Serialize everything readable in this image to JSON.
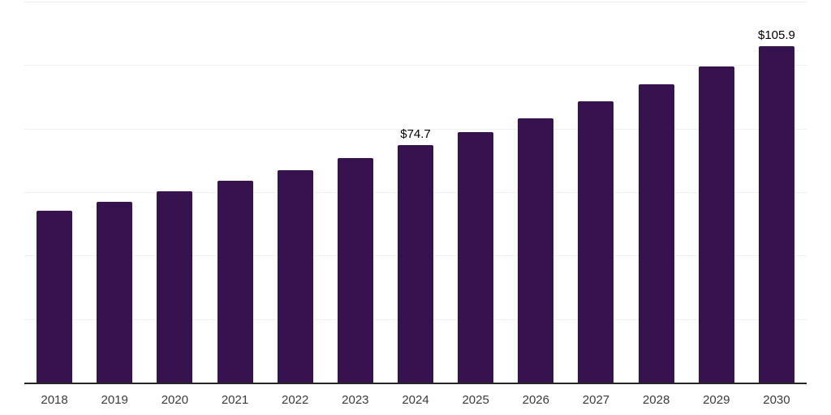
{
  "chart_data": {
    "type": "bar",
    "title": "",
    "xlabel": "",
    "ylabel": "",
    "categories": [
      "2018",
      "2019",
      "2020",
      "2021",
      "2022",
      "2023",
      "2024",
      "2025",
      "2026",
      "2027",
      "2028",
      "2029",
      "2030"
    ],
    "values": [
      54.1,
      56.9,
      60.2,
      63.5,
      67.0,
      70.6,
      74.7,
      78.8,
      83.3,
      88.6,
      94.0,
      99.6,
      105.9
    ],
    "data_labels": [
      "",
      "",
      "",
      "",
      "",
      "",
      "$74.7",
      "",
      "",
      "",
      "",
      "",
      "$105.9"
    ],
    "ylim": [
      0,
      120
    ],
    "gridline_step": 20,
    "grid": true,
    "legend": false,
    "y_axis_tick_labels_visible": false,
    "colors": {
      "bar": "#36124E",
      "gridline": "#f0f0f0",
      "axis_line": "#262626",
      "tick_label": "#3b3b3b",
      "data_label": "#000000",
      "background": "#ffffff"
    }
  }
}
